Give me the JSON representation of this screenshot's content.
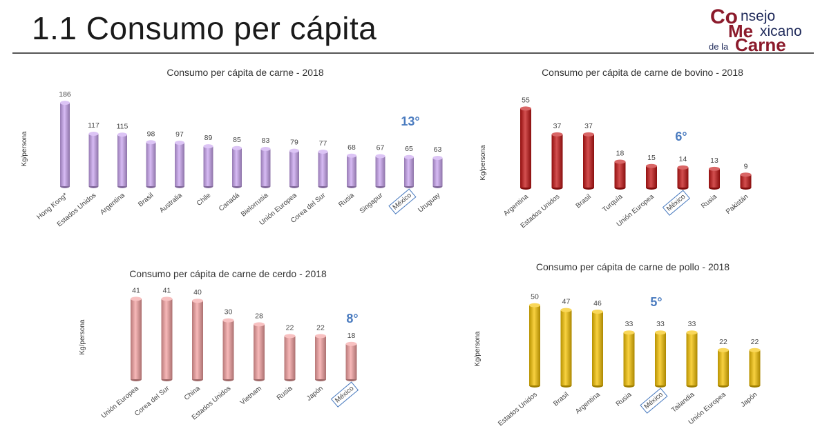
{
  "slide": {
    "title": "1.1 Consumo per cápita"
  },
  "logo": {
    "line1_big": "Co",
    "line1_rest": "nsejo",
    "line2_big": "Me",
    "line2_rest": "xicano",
    "line3_small": "de la",
    "line3_big": "Carne",
    "colors": {
      "primary": "#8b1a2b",
      "secondary": "#1f2a5a"
    }
  },
  "chart_data": [
    {
      "type": "bar",
      "title": "Consumo per cápita de carne - 2018",
      "ylabel": "Kg/persona",
      "categories": [
        "Hong Kong*",
        "Estados Unidos",
        "Argentina",
        "Brasil",
        "Australia",
        "Chile",
        "Canadá",
        "Bielorrusia",
        "Unión Europea",
        "Corea del Sur",
        "Rusia",
        "Singapur",
        "México",
        "Uruguay"
      ],
      "values": [
        186,
        117,
        115,
        98,
        97,
        89,
        85,
        83,
        79,
        77,
        68,
        67,
        65,
        63
      ],
      "ylim": [
        0,
        200
      ],
      "highlight": "México",
      "rank": "13°",
      "color": "#c9a4f0",
      "grid": false
    },
    {
      "type": "bar",
      "title": "Consumo per cápita de carne de bovino - 2018",
      "ylabel": "Kg/persona",
      "categories": [
        "Argentina",
        "Estados Unidos",
        "Brasil",
        "Turquía",
        "Unión Europea",
        "México",
        "Rusia",
        "Pakistán"
      ],
      "values": [
        55,
        37,
        37,
        18,
        15,
        14,
        13,
        9
      ],
      "ylim": [
        0,
        60
      ],
      "highlight": "México",
      "rank": "6°",
      "color": "#c41414",
      "grid": false
    },
    {
      "type": "bar",
      "title": "Consumo per cápita de carne de cerdo - 2018",
      "ylabel": "Kg/persona",
      "categories": [
        "Unión Europea",
        "Corea del Sur",
        "China",
        "Estados Unidos",
        "Vietnam",
        "Rusia",
        "Japón",
        "México"
      ],
      "values": [
        41,
        41,
        40,
        30,
        28,
        22,
        22,
        18
      ],
      "ylim": [
        0,
        45
      ],
      "highlight": "México",
      "rank": "8°",
      "color": "#f4a0a0",
      "grid": false
    },
    {
      "type": "bar",
      "title": "Consumo per cápita de carne de pollo - 2018",
      "ylabel": "Kg/persona",
      "categories": [
        "Estados Unidos",
        "Brasil",
        "Argentina",
        "Rusia",
        "México",
        "Tailandia",
        "Unión Europea",
        "Japón"
      ],
      "values": [
        50,
        47,
        46,
        33,
        33,
        33,
        22,
        22
      ],
      "ylim": [
        0,
        55
      ],
      "highlight": "México",
      "rank": "5°",
      "color": "#f5c200",
      "grid": false
    }
  ]
}
